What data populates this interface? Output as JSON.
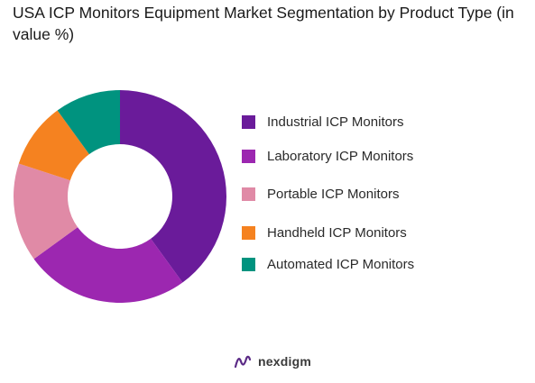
{
  "title": "USA ICP Monitors Equipment  Market Segmentation by Product Type (in value %)",
  "brand": {
    "name": "nexdigm",
    "logo_icon": "nexdigm-logo-icon"
  },
  "chart_data": {
    "type": "pie",
    "donut": true,
    "title": "USA ICP Monitors Equipment  Market Segmentation by Product Type (in value %)",
    "legend_position": "right",
    "categories": [
      "Industrial ICP Monitors",
      "Laboratory ICP Monitors",
      "Portable ICP Monitors",
      "Handheld ICP Monitors",
      "Automated ICP Monitors"
    ],
    "values": [
      40,
      25,
      15,
      10,
      10
    ],
    "colors": [
      "#6a1b9a",
      "#9c27b0",
      "#e08aa6",
      "#f58220",
      "#00937f"
    ]
  }
}
